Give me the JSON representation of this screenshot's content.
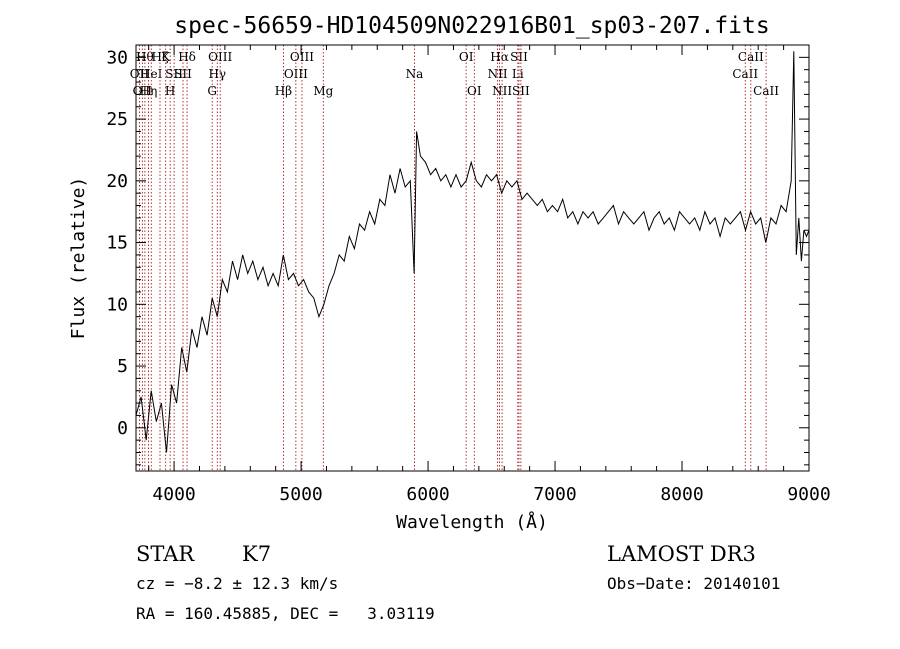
{
  "chart_data": {
    "type": "line",
    "title": "spec-56659-HD104509N022916B01_sp03-207.fits",
    "xlabel": "Wavelength (Å)",
    "ylabel": "Flux (relative)",
    "xlim": [
      3700,
      9000
    ],
    "ylim": [
      -3.5,
      31
    ],
    "xticks": [
      4000,
      5000,
      6000,
      7000,
      8000,
      9000
    ],
    "yticks": [
      0,
      5,
      10,
      15,
      20,
      25,
      30
    ],
    "grid": false,
    "legend": "none",
    "series": [
      {
        "color": "#000000",
        "x": [
          3700,
          3740,
          3780,
          3820,
          3860,
          3900,
          3940,
          3980,
          4020,
          4060,
          4100,
          4140,
          4180,
          4220,
          4260,
          4300,
          4340,
          4380,
          4420,
          4460,
          4500,
          4540,
          4580,
          4620,
          4660,
          4700,
          4740,
          4780,
          4820,
          4860,
          4900,
          4940,
          4980,
          5020,
          5060,
          5100,
          5140,
          5180,
          5220,
          5260,
          5300,
          5340,
          5380,
          5420,
          5460,
          5500,
          5540,
          5580,
          5620,
          5660,
          5700,
          5740,
          5780,
          5820,
          5860,
          5890,
          5910,
          5940,
          5980,
          6020,
          6060,
          6100,
          6140,
          6180,
          6220,
          6260,
          6300,
          6340,
          6380,
          6420,
          6460,
          6500,
          6540,
          6580,
          6620,
          6660,
          6700,
          6740,
          6780,
          6820,
          6860,
          6900,
          6940,
          6980,
          7020,
          7060,
          7100,
          7140,
          7180,
          7220,
          7260,
          7300,
          7340,
          7380,
          7420,
          7460,
          7500,
          7540,
          7580,
          7620,
          7660,
          7700,
          7740,
          7780,
          7820,
          7860,
          7900,
          7940,
          7980,
          8020,
          8060,
          8100,
          8140,
          8180,
          8220,
          8260,
          8300,
          8340,
          8380,
          8420,
          8460,
          8500,
          8540,
          8580,
          8620,
          8660,
          8700,
          8740,
          8780,
          8820,
          8860,
          8880,
          8900,
          8920,
          8940,
          8960,
          8980,
          9000
        ],
        "y": [
          1.0,
          2.5,
          -1.0,
          3.0,
          0.5,
          2.0,
          -2.0,
          3.5,
          2.0,
          6.5,
          4.5,
          8.0,
          6.5,
          9.0,
          7.5,
          10.5,
          9.0,
          12.0,
          11.0,
          13.5,
          12.0,
          14.0,
          12.5,
          13.5,
          12.0,
          13.0,
          11.5,
          12.5,
          11.5,
          14.0,
          12.0,
          12.5,
          11.5,
          12.0,
          11.0,
          10.5,
          9.0,
          10.0,
          11.5,
          12.5,
          14.0,
          13.5,
          15.5,
          14.5,
          16.5,
          16.0,
          17.5,
          16.5,
          18.5,
          18.0,
          20.5,
          19.0,
          21.0,
          19.5,
          20.0,
          12.5,
          24.0,
          22.0,
          21.5,
          20.5,
          21.0,
          20.0,
          20.5,
          19.5,
          20.5,
          19.5,
          20.0,
          21.5,
          20.0,
          19.5,
          20.5,
          20.0,
          20.5,
          19.0,
          20.0,
          19.5,
          20.0,
          18.5,
          19.0,
          18.5,
          18.0,
          18.5,
          17.5,
          18.0,
          17.5,
          18.5,
          17.0,
          17.5,
          16.5,
          17.5,
          17.0,
          17.5,
          16.5,
          17.0,
          17.5,
          18.0,
          16.5,
          17.5,
          17.0,
          16.5,
          17.0,
          17.5,
          16.0,
          17.0,
          17.5,
          16.5,
          17.0,
          16.0,
          17.5,
          17.0,
          16.5,
          17.0,
          16.0,
          17.5,
          16.5,
          17.0,
          15.5,
          17.0,
          16.5,
          17.0,
          17.5,
          16.0,
          17.5,
          16.5,
          17.0,
          15.0,
          17.0,
          16.5,
          18.0,
          17.5,
          20.0,
          30.5,
          14.0,
          17.0,
          13.5,
          16.0,
          15.5,
          16.0
        ]
      }
    ],
    "lines": [
      {
        "x": 3727,
        "label": "OII",
        "row": 2
      },
      {
        "x": 3750,
        "label": "OII",
        "row": 3
      },
      {
        "x": 3770,
        "label": "Hθ",
        "row": 1
      },
      {
        "x": 3798,
        "label": "Hη",
        "row": 3
      },
      {
        "x": 3820,
        "label": "HeI",
        "row": 2
      },
      {
        "x": 3889,
        "label": "Hζ",
        "row": 1
      },
      {
        "x": 3934,
        "label": "K",
        "row": 1
      },
      {
        "x": 3969,
        "label": "H",
        "row": 3
      },
      {
        "x": 4000,
        "label": "SII",
        "row": 2
      },
      {
        "x": 4070,
        "label": "SII",
        "row": 2
      },
      {
        "x": 4102,
        "label": "Hδ",
        "row": 1
      },
      {
        "x": 4300,
        "label": "G",
        "row": 3
      },
      {
        "x": 4340,
        "label": "Hγ",
        "row": 2
      },
      {
        "x": 4363,
        "label": "OIII",
        "row": 1
      },
      {
        "x": 4861,
        "label": "Hβ",
        "row": 3
      },
      {
        "x": 4959,
        "label": "OIII",
        "row": 2
      },
      {
        "x": 5007,
        "label": "OIII",
        "row": 1
      },
      {
        "x": 5175,
        "label": "Mg",
        "row": 3
      },
      {
        "x": 5893,
        "label": "Na",
        "row": 2
      },
      {
        "x": 6300,
        "label": "OI",
        "row": 1
      },
      {
        "x": 6364,
        "label": "OI",
        "row": 3
      },
      {
        "x": 6548,
        "label": "NII",
        "row": 2
      },
      {
        "x": 6563,
        "label": "Hα",
        "row": 1
      },
      {
        "x": 6583,
        "label": "NII",
        "row": 3
      },
      {
        "x": 6707,
        "label": "Li",
        "row": 2
      },
      {
        "x": 6716,
        "label": "SII",
        "row": 1
      },
      {
        "x": 6731,
        "label": "SII",
        "row": 3
      },
      {
        "x": 8498,
        "label": "CaII",
        "row": 2
      },
      {
        "x": 8542,
        "label": "CaII",
        "row": 1
      },
      {
        "x": 8662,
        "label": "CaII",
        "row": 3
      }
    ]
  },
  "info": {
    "class": "STAR",
    "subclass": "K7",
    "survey": "LAMOST DR3",
    "cz": "cz = −8.2 ± 12.3 km/s",
    "obsdate": "Obs−Date: 20140101",
    "radec": "RA = 160.45885, DEC =   3.03119"
  }
}
